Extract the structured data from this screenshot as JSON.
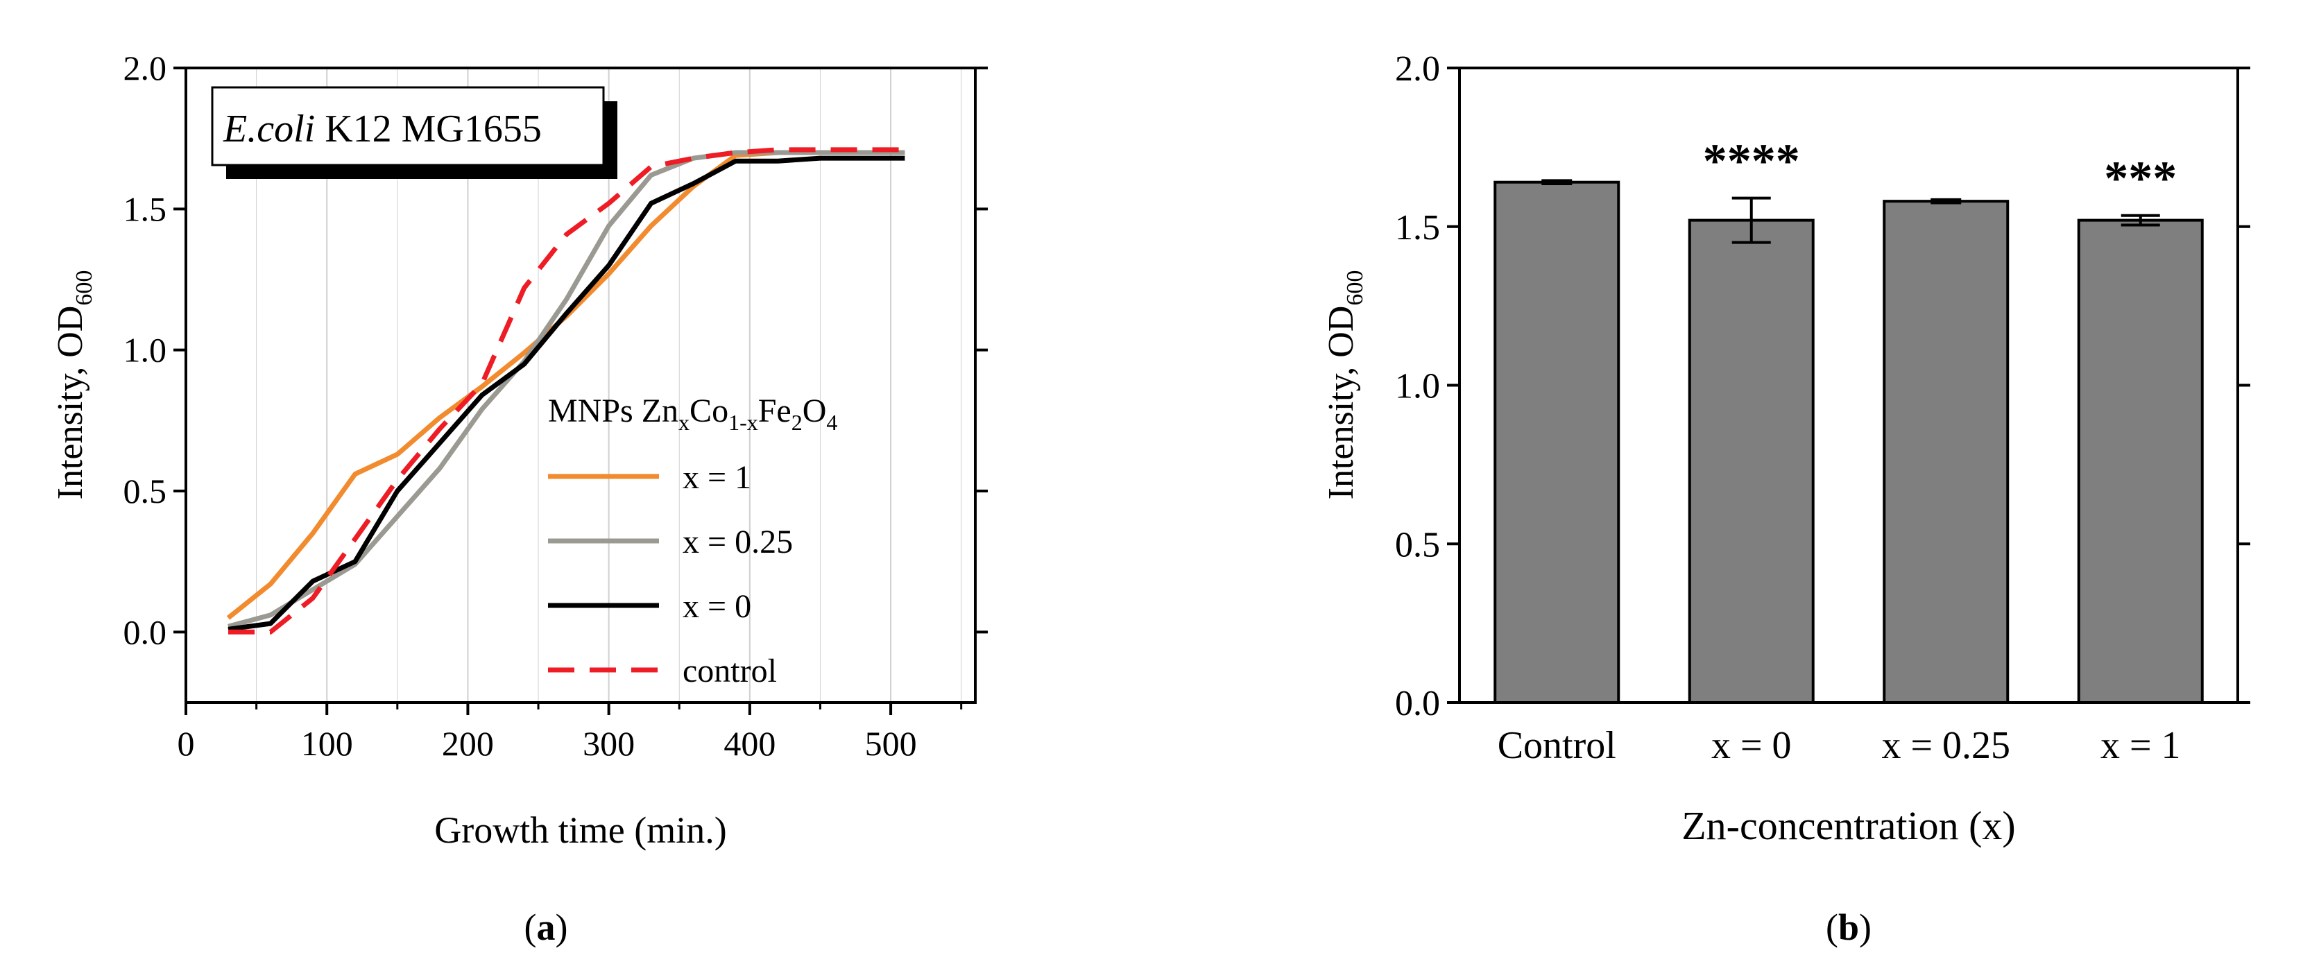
{
  "colors": {
    "x1": "#f28a2e",
    "x025": "#9a9a92",
    "x0": "#000000",
    "control": "#ee1c24",
    "bar_fill": "#7f7f7f",
    "grid": "#d0d0d0"
  },
  "panel_labels": {
    "a": "a",
    "b": "b"
  },
  "chart_data": [
    {
      "type": "line",
      "xlabel": "Growth time (min.)",
      "ylabel": "Intensity, OD",
      "ylabel_sub": "600",
      "xlim": [
        0,
        560
      ],
      "ylim": [
        -0.25,
        2.0
      ],
      "xticks": [
        "0",
        "100",
        "200",
        "300",
        "400",
        "500"
      ],
      "yticks": [
        "0.0",
        "0.5",
        "1.0",
        "1.5",
        "2.0"
      ],
      "grid": true,
      "annotation": {
        "italic": "E.coli",
        "rest": " K12 MG1655"
      },
      "legend_title": {
        "prefix": "MNPs Zn",
        "sub1": "x",
        "mid": "Co",
        "sub2": "1-x",
        "mid2": "Fe",
        "sub3": "2",
        "mid3": "O",
        "sub4": "4"
      },
      "legend_position": "center-right",
      "series": [
        {
          "name": "x = 1",
          "style": "solid",
          "x": [
            30,
            60,
            90,
            120,
            150,
            180,
            210,
            240,
            270,
            300,
            330,
            360,
            390,
            420,
            450,
            480,
            510
          ],
          "y": [
            0.05,
            0.17,
            0.35,
            0.56,
            0.63,
            0.76,
            0.87,
            0.99,
            1.12,
            1.27,
            1.44,
            1.58,
            1.69,
            1.7,
            1.7,
            1.7,
            1.7
          ]
        },
        {
          "name": "x = 0.25",
          "style": "solid",
          "x": [
            30,
            60,
            90,
            120,
            150,
            180,
            210,
            240,
            270,
            300,
            330,
            360,
            390,
            420,
            450,
            480,
            510
          ],
          "y": [
            0.02,
            0.06,
            0.15,
            0.24,
            0.41,
            0.58,
            0.79,
            0.96,
            1.18,
            1.44,
            1.62,
            1.68,
            1.7,
            1.7,
            1.7,
            1.7,
            1.7
          ]
        },
        {
          "name": "x = 0",
          "style": "solid",
          "x": [
            30,
            60,
            90,
            120,
            150,
            180,
            210,
            240,
            270,
            300,
            330,
            360,
            390,
            420,
            450,
            480,
            510
          ],
          "y": [
            0.01,
            0.03,
            0.18,
            0.25,
            0.5,
            0.67,
            0.84,
            0.95,
            1.13,
            1.3,
            1.52,
            1.59,
            1.67,
            1.67,
            1.68,
            1.68,
            1.68
          ]
        },
        {
          "name": "control",
          "style": "dashed",
          "x": [
            30,
            60,
            90,
            120,
            150,
            180,
            210,
            240,
            270,
            300,
            330,
            360,
            390,
            420,
            450,
            480,
            510
          ],
          "y": [
            0.0,
            0.0,
            0.12,
            0.33,
            0.54,
            0.72,
            0.88,
            1.22,
            1.41,
            1.52,
            1.65,
            1.68,
            1.7,
            1.71,
            1.71,
            1.71,
            1.71
          ]
        }
      ]
    },
    {
      "type": "bar",
      "xlabel": "Zn-concentration (x)",
      "ylabel": "Intensity, OD",
      "ylabel_sub": "600",
      "ylim": [
        0,
        2.0
      ],
      "yticks": [
        "0.0",
        "0.5",
        "1.0",
        "1.5",
        "2.0"
      ],
      "categories": [
        "Control",
        "x = 0",
        "x = 0.25",
        "x = 1"
      ],
      "values": [
        1.64,
        1.52,
        1.58,
        1.52
      ],
      "errors": [
        0.005,
        0.07,
        0.005,
        0.015
      ],
      "significance": [
        "",
        "****",
        "",
        "***"
      ]
    }
  ]
}
